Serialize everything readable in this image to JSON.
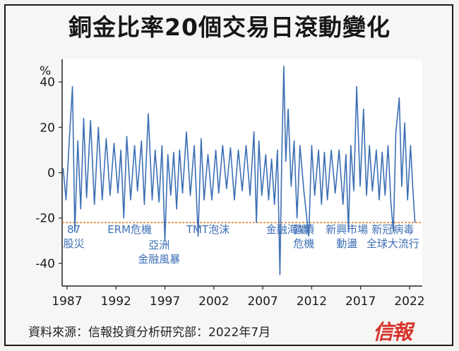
{
  "page": {
    "title": "銅金比率20個交易日滾動變化",
    "source": "資料來源：信報投資分析研究部：2022年7月",
    "brand": "信報"
  },
  "colors": {
    "line": "#3d6fb4",
    "reference_line": "#e0781c",
    "plot_background": "#ffffff",
    "title_band": "#ededeb"
  },
  "chart_data": {
    "type": "line",
    "title": "銅金比率20個交易日滾動變化",
    "ylabel": "%",
    "xlabel": "",
    "xlim": [
      1986.5,
      2023.3
    ],
    "ylim": [
      -50,
      50
    ],
    "y_ticks": [
      40,
      20,
      0,
      -20,
      -40
    ],
    "x_ticks": [
      1987,
      1992,
      1997,
      2002,
      2007,
      2012,
      2017,
      2022
    ],
    "reference_line": {
      "y": -22,
      "color": "#e0781c"
    },
    "grid": false,
    "series_name": "",
    "series_points": [
      [
        1986.6,
        2
      ],
      [
        1986.9,
        -12
      ],
      [
        1987.2,
        12
      ],
      [
        1987.55,
        38
      ],
      [
        1987.8,
        -26
      ],
      [
        1988.1,
        14
      ],
      [
        1988.4,
        -16
      ],
      [
        1988.7,
        24
      ],
      [
        1989.0,
        -11
      ],
      [
        1989.4,
        23
      ],
      [
        1989.8,
        -14
      ],
      [
        1990.2,
        20
      ],
      [
        1990.6,
        -12
      ],
      [
        1991.0,
        15
      ],
      [
        1991.4,
        -10
      ],
      [
        1991.8,
        13
      ],
      [
        1992.2,
        -9
      ],
      [
        1992.5,
        10
      ],
      [
        1992.8,
        -20
      ],
      [
        1993.1,
        16
      ],
      [
        1993.5,
        -12
      ],
      [
        1993.9,
        12
      ],
      [
        1994.2,
        -8
      ],
      [
        1994.6,
        14
      ],
      [
        1994.9,
        -14
      ],
      [
        1995.3,
        26
      ],
      [
        1995.7,
        -12
      ],
      [
        1996.0,
        10
      ],
      [
        1996.4,
        -13
      ],
      [
        1996.7,
        12
      ],
      [
        1997.0,
        -30
      ],
      [
        1997.3,
        8
      ],
      [
        1997.6,
        -10
      ],
      [
        1997.9,
        9
      ],
      [
        1998.2,
        -16
      ],
      [
        1998.5,
        10
      ],
      [
        1998.8,
        -9
      ],
      [
        1999.2,
        18
      ],
      [
        1999.6,
        -10
      ],
      [
        2000.0,
        12
      ],
      [
        2000.4,
        -28
      ],
      [
        2000.7,
        15
      ],
      [
        2001.0,
        -12
      ],
      [
        2001.4,
        8
      ],
      [
        2001.8,
        -12
      ],
      [
        2002.2,
        10
      ],
      [
        2002.5,
        -9
      ],
      [
        2002.9,
        12
      ],
      [
        2003.3,
        -7
      ],
      [
        2003.7,
        11
      ],
      [
        2004.1,
        -12
      ],
      [
        2004.5,
        10
      ],
      [
        2004.9,
        -8
      ],
      [
        2005.3,
        12
      ],
      [
        2005.7,
        -10
      ],
      [
        2006.1,
        18
      ],
      [
        2006.35,
        -22
      ],
      [
        2006.6,
        14
      ],
      [
        2006.9,
        -10
      ],
      [
        2007.3,
        8
      ],
      [
        2007.6,
        -12
      ],
      [
        2007.9,
        6
      ],
      [
        2008.2,
        -14
      ],
      [
        2008.5,
        10
      ],
      [
        2008.75,
        -45
      ],
      [
        2008.95,
        8
      ],
      [
        2009.15,
        47
      ],
      [
        2009.35,
        5
      ],
      [
        2009.6,
        28
      ],
      [
        2009.9,
        -6
      ],
      [
        2010.2,
        14
      ],
      [
        2010.5,
        -20
      ],
      [
        2010.8,
        12
      ],
      [
        2011.2,
        -8
      ],
      [
        2011.7,
        -28
      ],
      [
        2012.0,
        12
      ],
      [
        2012.3,
        -10
      ],
      [
        2012.7,
        10
      ],
      [
        2013.0,
        -14
      ],
      [
        2013.3,
        9
      ],
      [
        2013.6,
        -12
      ],
      [
        2014.0,
        10
      ],
      [
        2014.4,
        -9
      ],
      [
        2014.8,
        10
      ],
      [
        2015.2,
        -14
      ],
      [
        2015.5,
        8
      ],
      [
        2015.75,
        -26
      ],
      [
        2016.0,
        12
      ],
      [
        2016.3,
        -8
      ],
      [
        2016.6,
        38
      ],
      [
        2016.95,
        -6
      ],
      [
        2017.3,
        28
      ],
      [
        2017.6,
        -10
      ],
      [
        2017.9,
        12
      ],
      [
        2018.2,
        -8
      ],
      [
        2018.6,
        10
      ],
      [
        2018.9,
        -12
      ],
      [
        2019.2,
        9
      ],
      [
        2019.5,
        -10
      ],
      [
        2019.8,
        12
      ],
      [
        2020.1,
        -14
      ],
      [
        2020.35,
        -26
      ],
      [
        2020.6,
        18
      ],
      [
        2020.95,
        33
      ],
      [
        2021.2,
        -6
      ],
      [
        2021.5,
        22
      ],
      [
        2021.8,
        -12
      ],
      [
        2022.1,
        12
      ],
      [
        2022.35,
        -8
      ],
      [
        2022.55,
        -22
      ]
    ],
    "annotations": [
      {
        "lines": [
          "87",
          "股災"
        ],
        "x": 1987.7
      },
      {
        "lines": [
          "ERM危機"
        ],
        "x": 1993.4
      },
      {
        "lines": [
          "亞洲",
          "金融風暴"
        ],
        "x": 1996.4
      },
      {
        "lines": [
          "TMT泡沫"
        ],
        "x": 2001.4
      },
      {
        "lines": [
          "金融海嘯"
        ],
        "x": 2009.5
      },
      {
        "lines": [
          "歐債",
          "危機"
        ],
        "x": 2011.2
      },
      {
        "lines": [
          "新興市場",
          "動盪"
        ],
        "x": 2015.6
      },
      {
        "lines": [
          "新冠病毒",
          "全球大流行"
        ],
        "x": 2020.3
      }
    ]
  }
}
